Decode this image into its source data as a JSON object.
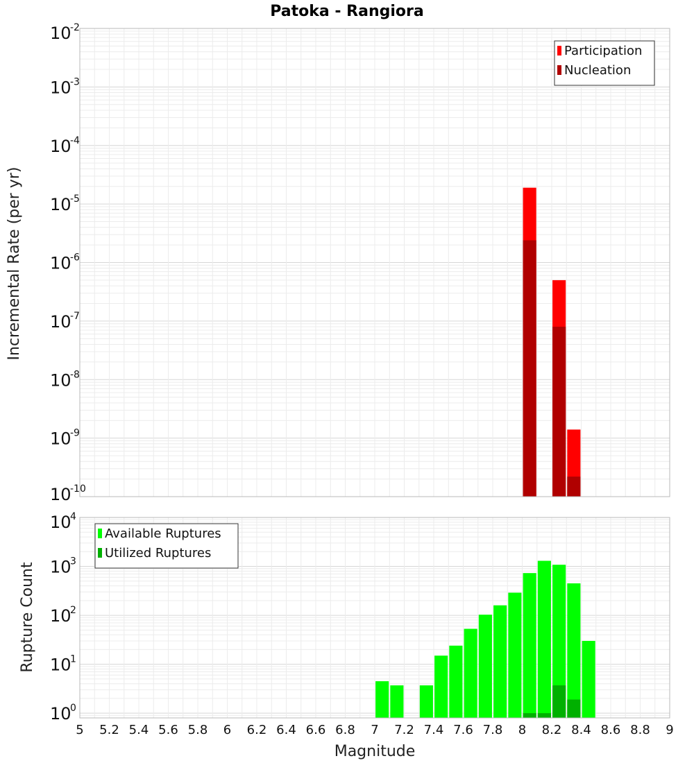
{
  "chart_data": {
    "title": "Patoka - Rangiora",
    "xlabel": "Magnitude",
    "xlim": [
      5,
      9
    ],
    "x_ticks": [
      "5",
      "5.2",
      "5.4",
      "5.6",
      "5.8",
      "6",
      "6.2",
      "6.4",
      "6.6",
      "6.8",
      "7",
      "7.2",
      "7.4",
      "7.6",
      "7.8",
      "8",
      "8.2",
      "8.4",
      "8.6",
      "8.8",
      "9"
    ],
    "panels": [
      {
        "type": "bar",
        "ylabel": "Incremental Rate (per yr)",
        "yscale": "log",
        "ylim": [
          1e-10,
          0.01
        ],
        "grid": true,
        "legend_position": "top-right",
        "bar_width": 0.09,
        "y_tick_exponents": [
          "-2",
          "-3",
          "-4",
          "-5",
          "-6",
          "-7",
          "-8",
          "-9",
          "-10"
        ],
        "series": [
          {
            "name": "Participation",
            "color": "#ff0000",
            "x": [
              8.05,
              8.25,
              8.35
            ],
            "values": [
              1.9e-05,
              5e-07,
              1.4e-09
            ]
          },
          {
            "name": "Nucleation",
            "color": "#b00000",
            "x": [
              8.05,
              8.25,
              8.35
            ],
            "values": [
              2.4e-06,
              8e-08,
              2.2e-10
            ]
          }
        ]
      },
      {
        "type": "bar",
        "ylabel": "Rupture Count",
        "yscale": "log",
        "ylim": [
          0.8,
          10000
        ],
        "grid": true,
        "legend_position": "top-left",
        "bar_width": 0.09,
        "y_tick_exponents": [
          "4",
          "3",
          "2",
          "1",
          "0"
        ],
        "series": [
          {
            "name": "Available Ruptures",
            "color": "#00ff00",
            "x": [
              7.05,
              7.15,
              7.35,
              7.45,
              7.55,
              7.65,
              7.75,
              7.85,
              7.95,
              8.05,
              8.15,
              8.25,
              8.35,
              8.45
            ],
            "values": [
              4.5,
              3.7,
              3.7,
              15,
              24,
              53,
              103,
              160,
              290,
              730,
              1300,
              1080,
              450,
              30
            ]
          },
          {
            "name": "Utilized Ruptures",
            "color": "#00b000",
            "x": [
              8.05,
              8.15,
              8.25,
              8.35
            ],
            "values": [
              1,
              1,
              3.7,
              1.9
            ]
          }
        ]
      }
    ]
  }
}
